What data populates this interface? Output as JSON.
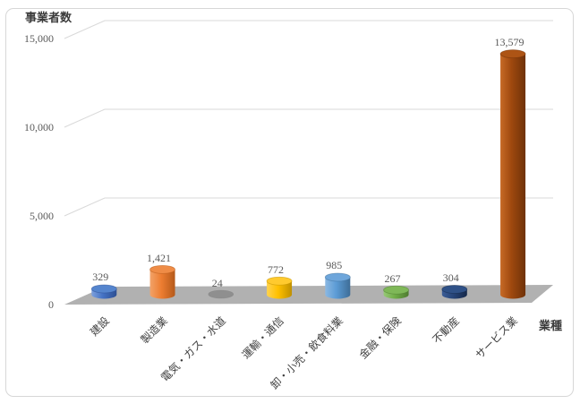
{
  "chart_data": {
    "type": "bar",
    "subtype": "3d-cylinder",
    "title": "",
    "y_axis_title": "事業者数",
    "x_axis_title": "業種",
    "categories": [
      "建設",
      "製造業",
      "電気・ガス・水道",
      "運輸・通信",
      "卸・小売・飲食料業",
      "金融・保険",
      "不動産",
      "サービス業"
    ],
    "values": [
      329,
      1421,
      24,
      772,
      985,
      267,
      304,
      13579
    ],
    "data_labels": [
      "329",
      "1,421",
      "24",
      "772",
      "985",
      "267",
      "304",
      "13,579"
    ],
    "y_ticks": [
      0,
      5000,
      10000,
      15000
    ],
    "y_tick_labels": [
      "0",
      "5,000",
      "10,000",
      "15,000"
    ],
    "ylim": [
      0,
      15000
    ],
    "grid": true,
    "legend": "none",
    "gridline_color": "#d9d9d9",
    "floor_color": "#b1b1b1",
    "tick_label_color": "#595959",
    "data_label_color": "#595959",
    "category_label_color": "#3f3f3f",
    "axis_title_color": "#3b3b3b",
    "bar_colors": [
      {
        "name": "blue",
        "light": "#7da0dc",
        "base": "#4472c4",
        "dark": "#2d4f92",
        "top": "#5585ce"
      },
      {
        "name": "orange",
        "light": "#f2a369",
        "base": "#ed7d31",
        "dark": "#b55a1a",
        "top": "#ef8c46"
      },
      {
        "name": "gray",
        "light": "#b0b0b0",
        "base": "#8f8f8f",
        "dark": "#757575",
        "top": "#9b9b9b"
      },
      {
        "name": "gold",
        "light": "#ffd34f",
        "base": "#ffc000",
        "dark": "#bf9000",
        "top": "#ffca2e"
      },
      {
        "name": "light-blue",
        "light": "#8bb8e2",
        "base": "#5b9bd5",
        "dark": "#3e6d97",
        "top": "#6ea6db"
      },
      {
        "name": "green",
        "light": "#97c877",
        "base": "#70ad47",
        "dark": "#4f7b31",
        "top": "#7fb858"
      },
      {
        "name": "navy",
        "light": "#3c5d96",
        "base": "#264478",
        "dark": "#16294a",
        "top": "#2f5187"
      },
      {
        "name": "dark-orange",
        "light": "#c76a26",
        "base": "#9e480e",
        "dark": "#6f3209",
        "top": "#ad5415"
      }
    ]
  }
}
